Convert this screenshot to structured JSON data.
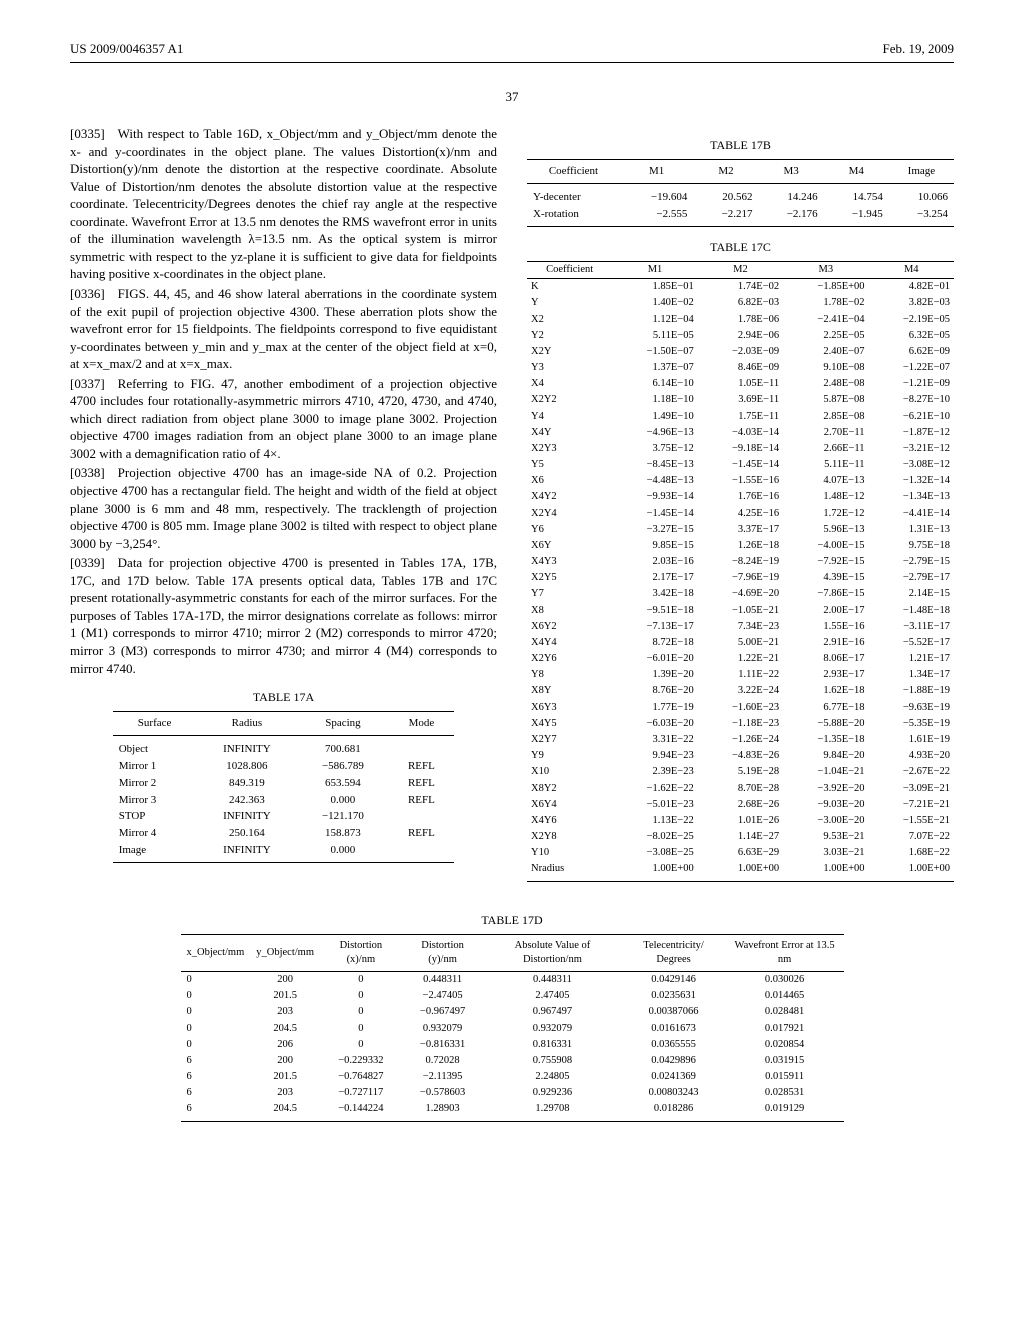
{
  "header": {
    "pub": "US 2009/0046357 A1",
    "date": "Feb. 19, 2009",
    "page": "37"
  },
  "paragraphs": {
    "p0335": "[0335] With respect to Table 16D, x_Object/mm and y_Object/mm denote the x- and y-coordinates in the object plane. The values Distortion(x)/nm and Distortion(y)/nm denote the distortion at the respective coordinate. Absolute Value of Distortion/nm denotes the absolute distortion value at the respective coordinate. Telecentricity/Degrees denotes the chief ray angle at the respective coordinate. Wavefront Error at 13.5 nm denotes the RMS wavefront error in units of the illumination wavelength λ=13.5 nm. As the optical system is mirror symmetric with respect to the yz-plane it is sufficient to give data for fieldpoints having positive x-coordinates in the object plane.",
    "p0336": "[0336] FIGS. 44, 45, and 46 show lateral aberrations in the coordinate system of the exit pupil of projection objective 4300. These aberration plots show the wavefront error for 15 fieldpoints. The fieldpoints correspond to five equidistant y-coordinates between y_min and y_max at the center of the object field at x=0, at x=x_max/2 and at x=x_max.",
    "p0337": "[0337] Referring to FIG. 47, another embodiment of a projection objective 4700 includes four rotationally-asymmetric mirrors 4710, 4720, 4730, and 4740, which direct radiation from object plane 3000 to image plane 3002. Projection objective 4700 images radiation from an object plane 3000 to an image plane 3002 with a demagnification ratio of 4×.",
    "p0338": "[0338] Projection objective 4700 has an image-side NA of 0.2. Projection objective 4700 has a rectangular field. The height and width of the field at object plane 3000 is 6 mm and 48 mm, respectively. The tracklength of projection objective 4700 is 805 mm. Image plane 3002 is tilted with respect to object plane 3000 by −3,254°.",
    "p0339": "[0339] Data for projection objective 4700 is presented in Tables 17A, 17B, 17C, and 17D below. Table 17A presents optical data, Tables 17B and 17C present rotationally-asymmetric constants for each of the mirror surfaces. For the purposes of Tables 17A-17D, the mirror designations correlate as follows: mirror 1 (M1) corresponds to mirror 4710; mirror 2 (M2) corresponds to mirror 4720; mirror 3 (M3) corresponds to mirror 4730; and mirror 4 (M4) corresponds to mirror 4740."
  },
  "table17A": {
    "title": "TABLE 17A",
    "columns": [
      "Surface",
      "Radius",
      "Spacing",
      "Mode"
    ],
    "rows": [
      [
        "Object",
        "INFINITY",
        "700.681",
        ""
      ],
      [
        "Mirror 1",
        "1028.806",
        "−586.789",
        "REFL"
      ],
      [
        "Mirror 2",
        "849.319",
        "653.594",
        "REFL"
      ],
      [
        "Mirror 3",
        "242.363",
        "0.000",
        "REFL"
      ],
      [
        "STOP",
        "INFINITY",
        "−121.170",
        ""
      ],
      [
        "Mirror 4",
        "250.164",
        "158.873",
        "REFL"
      ],
      [
        "Image",
        "INFINITY",
        "0.000",
        ""
      ]
    ]
  },
  "table17B": {
    "title": "TABLE 17B",
    "columns": [
      "Coefficient",
      "M1",
      "M2",
      "M3",
      "M4",
      "Image"
    ],
    "rows": [
      [
        "Y-decenter",
        "−19.604",
        "20.562",
        "14.246",
        "14.754",
        "10.066"
      ],
      [
        "X-rotation",
        "−2.555",
        "−2.217",
        "−2.176",
        "−1.945",
        "−3.254"
      ]
    ]
  },
  "table17C": {
    "title": "TABLE 17C",
    "columns": [
      "Coefficient",
      "M1",
      "M2",
      "M3",
      "M4"
    ],
    "rows": [
      [
        "K",
        "1.85E−01",
        "1.74E−02",
        "−1.85E+00",
        "4.82E−01"
      ],
      [
        "Y",
        "1.40E−02",
        "6.82E−03",
        "1.78E−02",
        "3.82E−03"
      ],
      [
        "X2",
        "1.12E−04",
        "1.78E−06",
        "−2.41E−04",
        "−2.19E−05"
      ],
      [
        "Y2",
        "5.11E−05",
        "2.94E−06",
        "2.25E−05",
        "6.32E−05"
      ],
      [
        "X2Y",
        "−1.50E−07",
        "−2.03E−09",
        "2.40E−07",
        "6.62E−09"
      ],
      [
        "Y3",
        "1.37E−07",
        "8.46E−09",
        "9.10E−08",
        "−1.22E−07"
      ],
      [
        "X4",
        "6.14E−10",
        "1.05E−11",
        "2.48E−08",
        "−1.21E−09"
      ],
      [
        "X2Y2",
        "1.18E−10",
        "3.69E−11",
        "5.87E−08",
        "−8.27E−10"
      ],
      [
        "Y4",
        "1.49E−10",
        "1.75E−11",
        "2.85E−08",
        "−6.21E−10"
      ],
      [
        "X4Y",
        "−4.96E−13",
        "−4.03E−14",
        "2.70E−11",
        "−1.87E−12"
      ],
      [
        "X2Y3",
        "3.75E−12",
        "−9.18E−14",
        "2.66E−11",
        "−3.21E−12"
      ],
      [
        "Y5",
        "−8.45E−13",
        "−1.45E−14",
        "5.11E−11",
        "−3.08E−12"
      ],
      [
        "X6",
        "−4.48E−13",
        "−1.55E−16",
        "4.07E−13",
        "−1.32E−14"
      ],
      [
        "X4Y2",
        "−9.93E−14",
        "1.76E−16",
        "1.48E−12",
        "−1.34E−13"
      ],
      [
        "X2Y4",
        "−1.45E−14",
        "4.25E−16",
        "1.72E−12",
        "−4.41E−14"
      ],
      [
        "Y6",
        "−3.27E−15",
        "3.37E−17",
        "5.96E−13",
        "1.31E−13"
      ],
      [
        "X6Y",
        "9.85E−15",
        "1.26E−18",
        "−4.00E−15",
        "9.75E−18"
      ],
      [
        "X4Y3",
        "2.03E−16",
        "−8.24E−19",
        "−7.92E−15",
        "−2.79E−15"
      ],
      [
        "X2Y5",
        "2.17E−17",
        "−7.96E−19",
        "4.39E−15",
        "−2.79E−17"
      ],
      [
        "Y7",
        "3.42E−18",
        "−4.69E−20",
        "−7.86E−15",
        "2.14E−15"
      ],
      [
        "X8",
        "−9.51E−18",
        "−1.05E−21",
        "2.00E−17",
        "−1.48E−18"
      ],
      [
        "X6Y2",
        "−7.13E−17",
        "7.34E−23",
        "1.55E−16",
        "−3.11E−17"
      ],
      [
        "X4Y4",
        "8.72E−18",
        "5.00E−21",
        "2.91E−16",
        "−5.52E−17"
      ],
      [
        "X2Y6",
        "−6.01E−20",
        "1.22E−21",
        "8.06E−17",
        "1.21E−17"
      ],
      [
        "Y8",
        "1.39E−20",
        "1.11E−22",
        "2.93E−17",
        "1.34E−17"
      ],
      [
        "X8Y",
        "8.76E−20",
        "3.22E−24",
        "1.62E−18",
        "−1.88E−19"
      ],
      [
        "X6Y3",
        "1.77E−19",
        "−1.60E−23",
        "6.77E−18",
        "−9.63E−19"
      ],
      [
        "X4Y5",
        "−6.03E−20",
        "−1.18E−23",
        "−5.88E−20",
        "−5.35E−19"
      ],
      [
        "X2Y7",
        "3.31E−22",
        "−1.26E−24",
        "−1.35E−18",
        "1.61E−19"
      ],
      [
        "Y9",
        "9.94E−23",
        "−4.83E−26",
        "9.84E−20",
        "4.93E−20"
      ],
      [
        "X10",
        "2.39E−23",
        "5.19E−28",
        "−1.04E−21",
        "−2.67E−22"
      ],
      [
        "X8Y2",
        "−1.62E−22",
        "8.70E−28",
        "−3.92E−20",
        "−3.09E−21"
      ],
      [
        "X6Y4",
        "−5.01E−23",
        "2.68E−26",
        "−9.03E−20",
        "−7.21E−21"
      ],
      [
        "X4Y6",
        "1.13E−22",
        "1.01E−26",
        "−3.00E−20",
        "−1.55E−21"
      ],
      [
        "X2Y8",
        "−8.02E−25",
        "1.14E−27",
        "9.53E−21",
        "7.07E−22"
      ],
      [
        "Y10",
        "−3.08E−25",
        "6.63E−29",
        "3.03E−21",
        "1.68E−22"
      ],
      [
        "Nradius",
        "1.00E+00",
        "1.00E+00",
        "1.00E+00",
        "1.00E+00"
      ]
    ]
  },
  "table17D": {
    "title": "TABLE 17D",
    "columns": [
      "x_Object/mm",
      "y_Object/mm",
      "Distortion (x)/nm",
      "Distortion (y)/nm",
      "Absolute Value of Distortion/nm",
      "Telecentricity/ Degrees",
      "Wavefront Error at 13.5 nm"
    ],
    "rows": [
      [
        "0",
        "200",
        "0",
        "0.448311",
        "0.448311",
        "0.0429146",
        "0.030026"
      ],
      [
        "0",
        "201.5",
        "0",
        "−2.47405",
        "2.47405",
        "0.0235631",
        "0.014465"
      ],
      [
        "0",
        "203",
        "0",
        "−0.967497",
        "0.967497",
        "0.00387066",
        "0.028481"
      ],
      [
        "0",
        "204.5",
        "0",
        "0.932079",
        "0.932079",
        "0.0161673",
        "0.017921"
      ],
      [
        "0",
        "206",
        "0",
        "−0.816331",
        "0.816331",
        "0.0365555",
        "0.020854"
      ],
      [
        "6",
        "200",
        "−0.229332",
        "0.72028",
        "0.755908",
        "0.0429896",
        "0.031915"
      ],
      [
        "6",
        "201.5",
        "−0.764827",
        "−2.11395",
        "2.24805",
        "0.0241369",
        "0.015911"
      ],
      [
        "6",
        "203",
        "−0.727117",
        "−0.578603",
        "0.929236",
        "0.00803243",
        "0.028531"
      ],
      [
        "6",
        "204.5",
        "−0.144224",
        "1.28903",
        "1.29708",
        "0.018286",
        "0.019129"
      ]
    ]
  }
}
